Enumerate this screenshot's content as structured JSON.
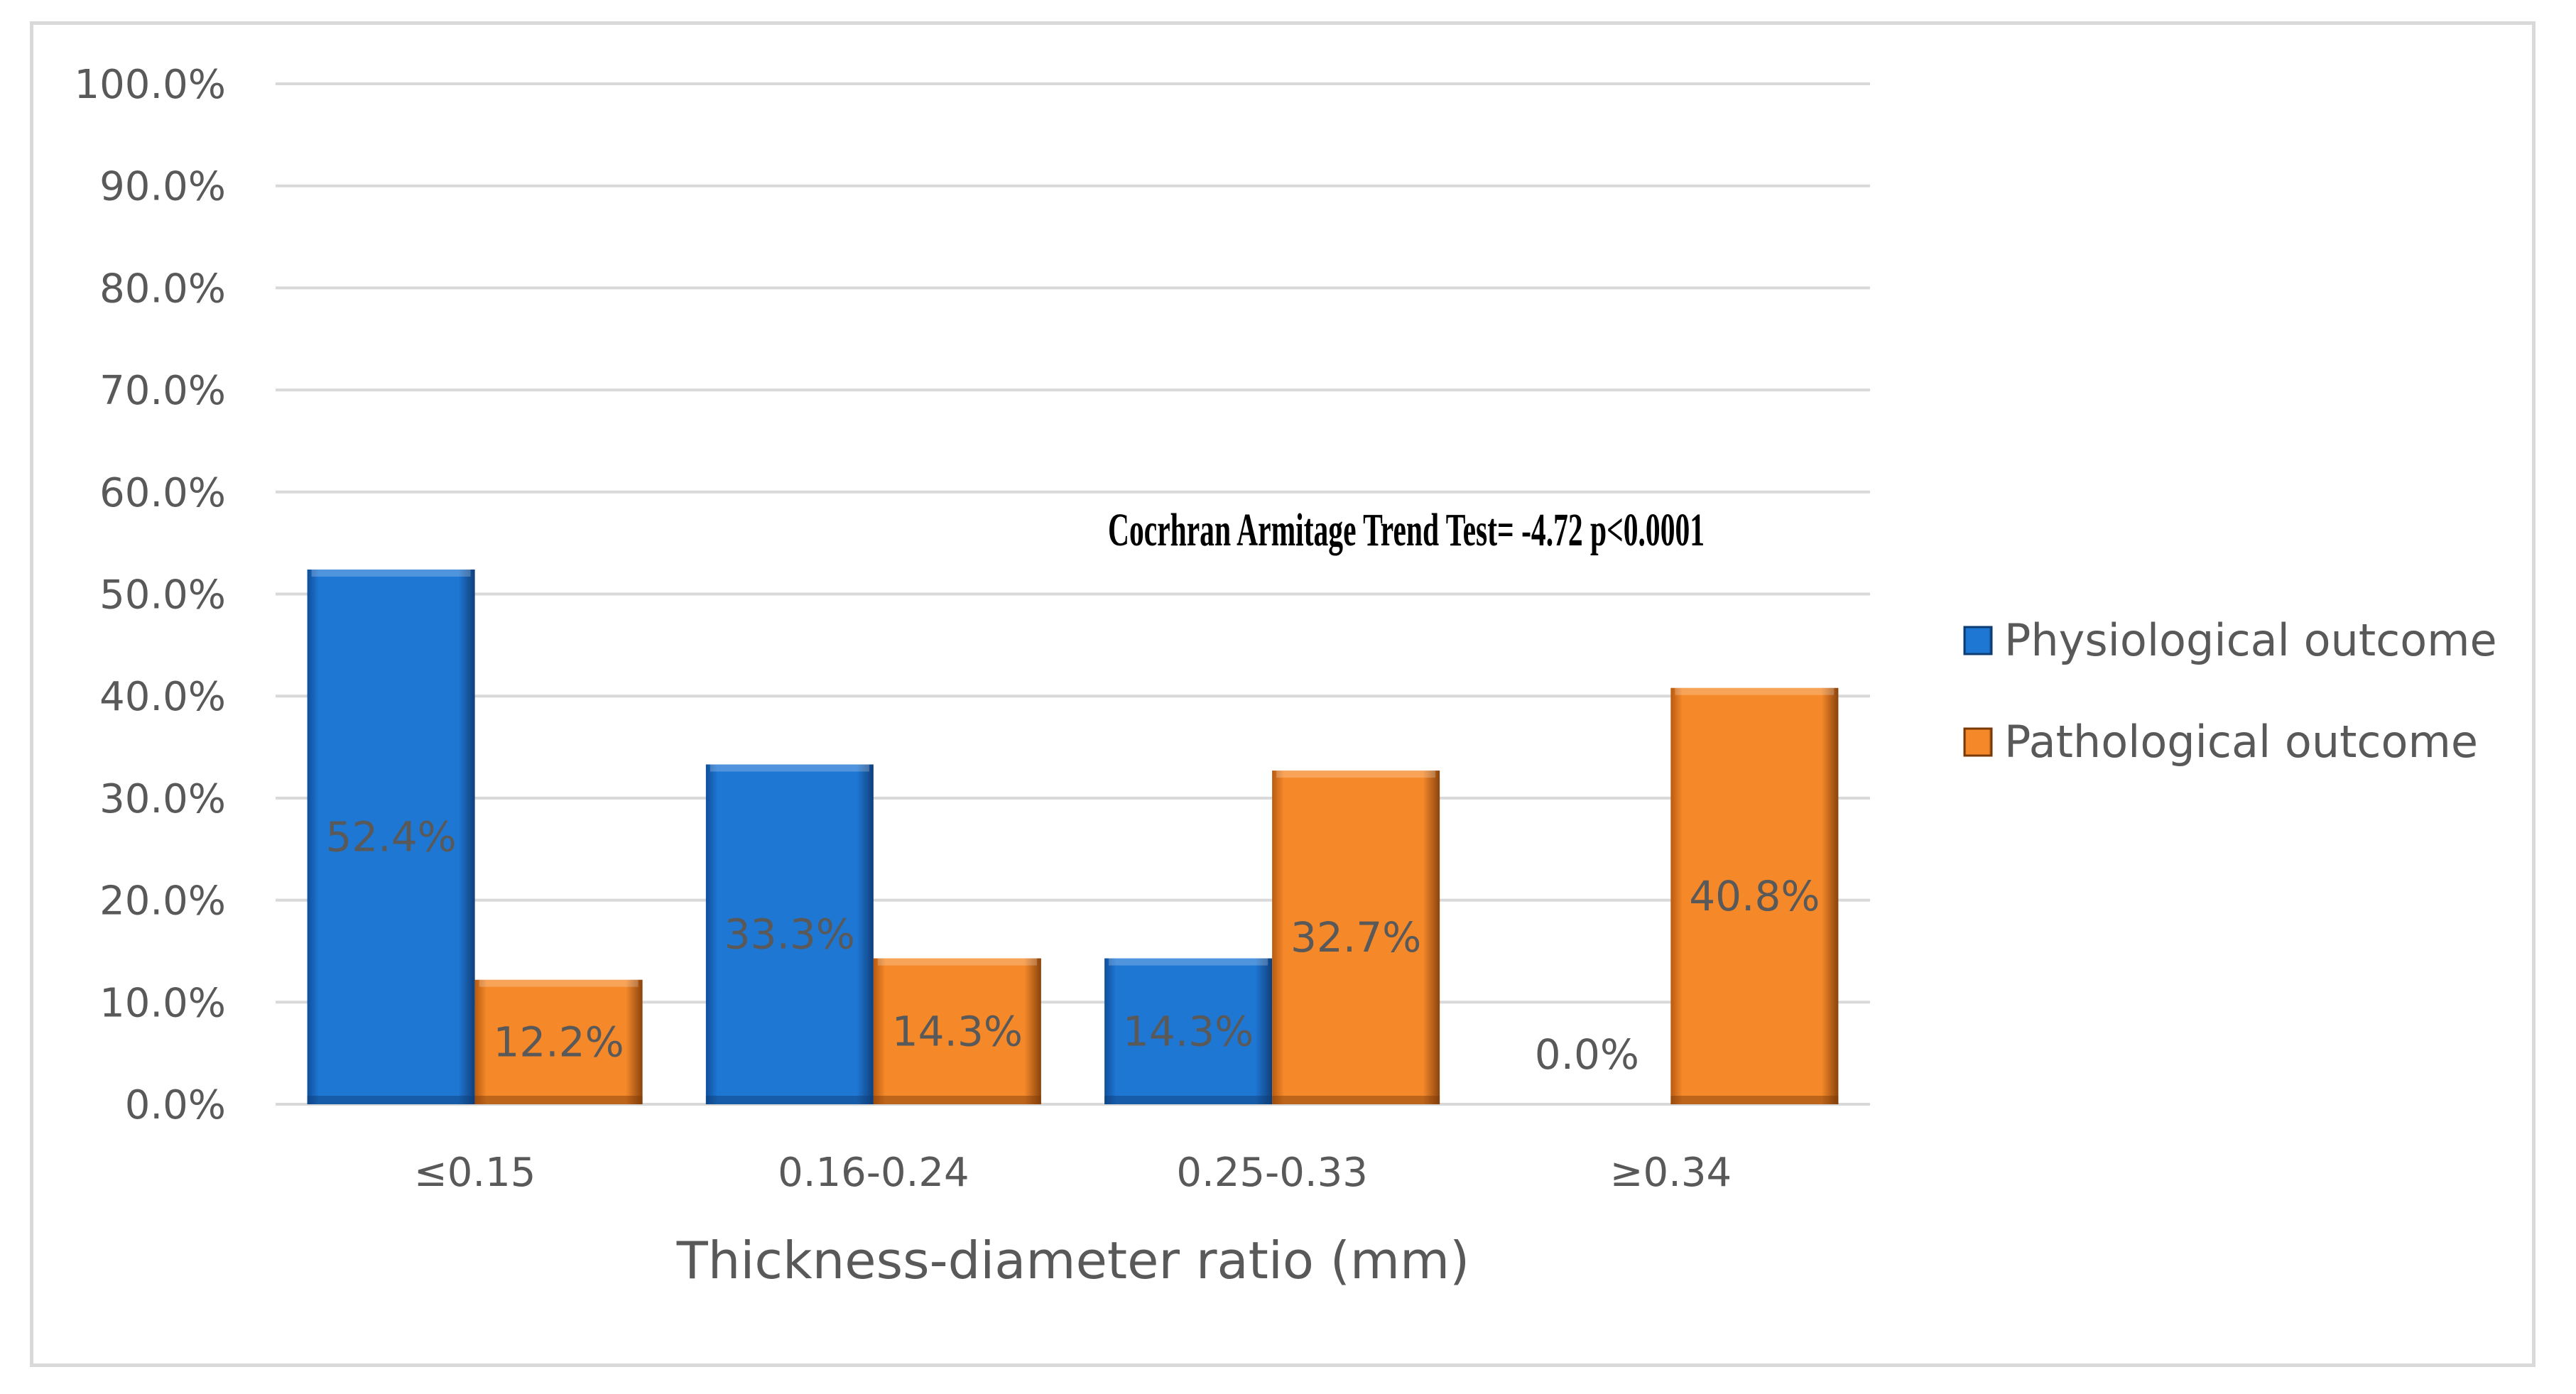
{
  "chart_data": {
    "type": "bar",
    "title": "",
    "xlabel": "Thickness-diameter ratio (mm)",
    "ylabel": "",
    "categories": [
      "≤0.15",
      "0.16-0.24",
      "0.25-0.33",
      "≥0.34"
    ],
    "series": [
      {
        "name": "Physiological outcome",
        "color": "#1f77d4",
        "values": [
          52.4,
          33.3,
          14.3,
          0.0
        ],
        "labels": [
          "52.4%",
          "33.3%",
          "14.3%",
          "0.0%"
        ]
      },
      {
        "name": "Pathological outcome",
        "color": "#f5892a",
        "values": [
          12.2,
          14.3,
          32.7,
          40.8
        ],
        "labels": [
          "12.2%",
          "14.3%",
          "32.7%",
          "40.8%"
        ]
      }
    ],
    "ylim": [
      0,
      100
    ],
    "yticks": [
      "0.0%",
      "10.0%",
      "20.0%",
      "30.0%",
      "40.0%",
      "50.0%",
      "60.0%",
      "70.0%",
      "80.0%",
      "90.0%",
      "100.0%"
    ],
    "grid": true,
    "legend_position": "right",
    "annotation": "Cocrhran Armitage Trend Test= -4.72 p<0.0001"
  }
}
